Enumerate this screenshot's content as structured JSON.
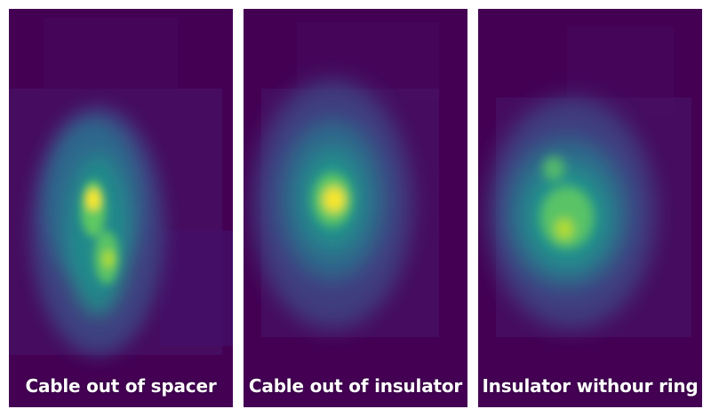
{
  "colormap": "viridis",
  "colors": {
    "background": "#440154",
    "low": "#3b528b",
    "mid": "#21918c",
    "high": "#5ec962",
    "peak": "#fde725",
    "caption": "#ffffff"
  },
  "panels": [
    {
      "caption": "Cable out of spacer"
    },
    {
      "caption": "Cable out of insulator"
    },
    {
      "caption": "Insulator withour ring"
    }
  ]
}
